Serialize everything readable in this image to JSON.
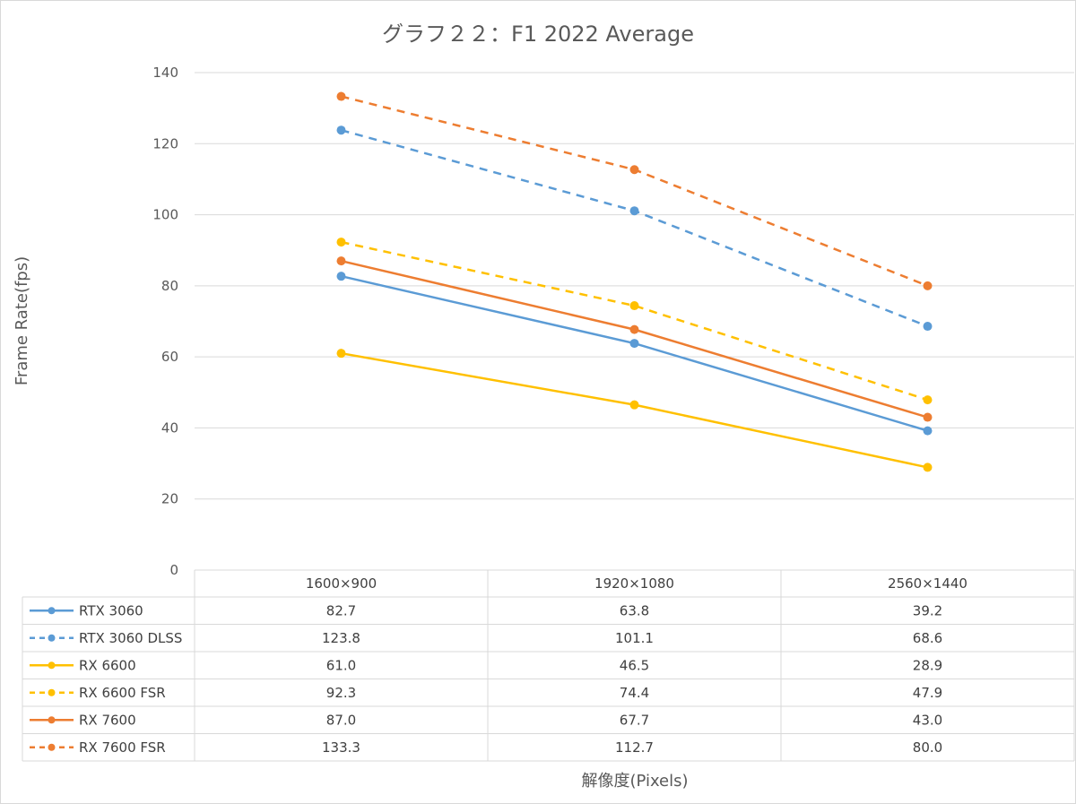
{
  "chart_data": {
    "type": "line",
    "title": "グラフ２２：F1 2022 Average",
    "xlabel": "解像度(Pixels)",
    "ylabel": "Frame Rate(fps)",
    "categories": [
      "1600×900",
      "1920×1080",
      "2560×1440"
    ],
    "ylim": [
      0,
      140
    ],
    "yticks": [
      0,
      20,
      40,
      60,
      80,
      100,
      120,
      140
    ],
    "grid": true,
    "legend_placement": "data table (bottom)",
    "series": [
      {
        "name": "RTX 3060",
        "values": [
          82.7,
          63.8,
          39.2
        ],
        "labels": [
          "82.7",
          "63.8",
          "39.2"
        ],
        "color": "#5B9BD5",
        "dashed": false
      },
      {
        "name": "RTX 3060 DLSS",
        "values": [
          123.8,
          101.1,
          68.6
        ],
        "labels": [
          "123.8",
          "101.1",
          "68.6"
        ],
        "color": "#5B9BD5",
        "dashed": true
      },
      {
        "name": "RX 6600",
        "values": [
          61.0,
          46.5,
          28.9
        ],
        "labels": [
          "61.0",
          "46.5",
          "28.9"
        ],
        "color": "#FFC000",
        "dashed": false
      },
      {
        "name": "RX 6600 FSR",
        "values": [
          92.3,
          74.4,
          47.9
        ],
        "labels": [
          "92.3",
          "74.4",
          "47.9"
        ],
        "color": "#FFC000",
        "dashed": true
      },
      {
        "name": "RX 7600",
        "values": [
          87.0,
          67.7,
          43.0
        ],
        "labels": [
          "87.0",
          "67.7",
          "43.0"
        ],
        "color": "#ED7D31",
        "dashed": false
      },
      {
        "name": "RX 7600 FSR",
        "values": [
          133.3,
          112.7,
          80.0
        ],
        "labels": [
          "133.3",
          "112.7",
          "80.0"
        ],
        "color": "#ED7D31",
        "dashed": true
      }
    ]
  }
}
